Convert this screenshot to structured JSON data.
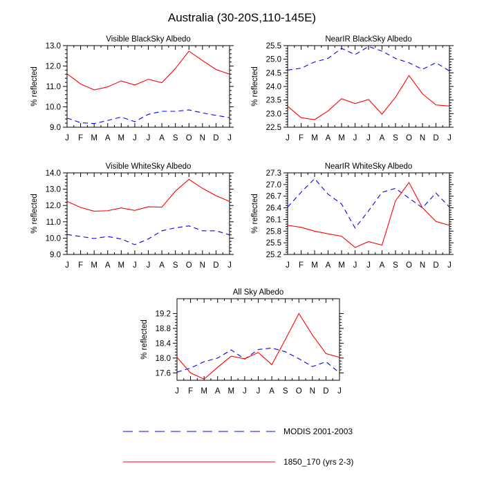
{
  "page_title": "Australia (30-20S,110-145E)",
  "colors": {
    "modis": "#0000ff",
    "model": "#ff0000",
    "axis": "#000000"
  },
  "legend": [
    {
      "name": "MODIS 2001-2003",
      "style": "dashed",
      "color": "#0000ff"
    },
    {
      "name": "1850_170 (yrs 2-3)",
      "style": "solid",
      "color": "#ff0000"
    }
  ],
  "chart_data": [
    {
      "type": "line",
      "title": "Visible BlackSky Albedo",
      "ylabel": "% reflected",
      "xlabel": "",
      "categories": [
        "J",
        "F",
        "M",
        "A",
        "M",
        "J",
        "J",
        "A",
        "S",
        "O",
        "N",
        "D",
        "J"
      ],
      "ylim": [
        9.0,
        13.0
      ],
      "yticks": [
        9.0,
        10.0,
        11.0,
        12.0,
        13.0
      ],
      "ytick_labels": [
        "9.0",
        "10.0",
        "11.0",
        "12.0",
        "13.0"
      ],
      "series": [
        {
          "name": "MODIS 2001-2003",
          "values": [
            9.45,
            9.22,
            9.18,
            9.33,
            9.5,
            9.27,
            9.63,
            9.78,
            9.78,
            9.85,
            9.7,
            9.58,
            9.47
          ]
        },
        {
          "name": "1850_170 (yrs 2-3)",
          "values": [
            11.62,
            11.12,
            10.83,
            10.98,
            11.27,
            11.07,
            11.35,
            11.18,
            11.88,
            12.73,
            12.27,
            11.83,
            11.6
          ]
        }
      ]
    },
    {
      "type": "line",
      "title": "NearIR BlackSky Albedo",
      "ylabel": "% reflected",
      "xlabel": "",
      "categories": [
        "J",
        "F",
        "M",
        "A",
        "M",
        "J",
        "J",
        "A",
        "S",
        "O",
        "N",
        "D",
        "J"
      ],
      "ylim": [
        22.5,
        25.5
      ],
      "yticks": [
        22.5,
        23.0,
        23.5,
        24.0,
        24.5,
        25.0,
        25.5
      ],
      "ytick_labels": [
        "22.5",
        "23.0",
        "23.5",
        "24.0",
        "24.5",
        "25.0",
        "25.5"
      ],
      "series": [
        {
          "name": "MODIS 2001-2003",
          "values": [
            24.6,
            24.67,
            24.9,
            25.03,
            25.4,
            25.17,
            25.47,
            25.3,
            25.03,
            24.87,
            24.63,
            24.87,
            24.57
          ]
        },
        {
          "name": "1850_170 (yrs 2-3)",
          "values": [
            23.27,
            22.85,
            22.78,
            23.1,
            23.55,
            23.37,
            23.52,
            22.98,
            23.6,
            24.4,
            23.73,
            23.32,
            23.28
          ]
        }
      ]
    },
    {
      "type": "line",
      "title": "Visible WhiteSky Albedo",
      "ylabel": "% reflected",
      "xlabel": "",
      "categories": [
        "J",
        "F",
        "M",
        "A",
        "M",
        "J",
        "J",
        "A",
        "S",
        "O",
        "N",
        "D",
        "J"
      ],
      "ylim": [
        9.0,
        14.0
      ],
      "yticks": [
        9.0,
        10.0,
        11.0,
        12.0,
        13.0,
        14.0
      ],
      "ytick_labels": [
        "9.0",
        "10.0",
        "11.0",
        "12.0",
        "13.0",
        "14.0"
      ],
      "series": [
        {
          "name": "MODIS 2001-2003",
          "values": [
            10.22,
            10.1,
            9.98,
            10.1,
            9.95,
            9.6,
            9.95,
            10.45,
            10.63,
            10.75,
            10.45,
            10.45,
            10.2
          ]
        },
        {
          "name": "1850_170 (yrs 2-3)",
          "values": [
            12.25,
            11.88,
            11.65,
            11.68,
            11.85,
            11.7,
            11.92,
            11.9,
            12.88,
            13.6,
            13.05,
            12.6,
            12.25
          ]
        }
      ]
    },
    {
      "type": "line",
      "title": "NearIR WhiteSky Albedo",
      "ylabel": "% reflected",
      "xlabel": "",
      "categories": [
        "J",
        "F",
        "M",
        "A",
        "M",
        "J",
        "J",
        "A",
        "S",
        "O",
        "N",
        "D",
        "J"
      ],
      "ylim": [
        25.2,
        27.3
      ],
      "yticks": [
        25.2,
        25.5,
        25.8,
        26.1,
        26.4,
        26.7,
        27.0,
        27.3
      ],
      "ytick_labels": [
        "25.2",
        "25.5",
        "25.8",
        "26.1",
        "26.4",
        "26.7",
        "27.0",
        "27.3"
      ],
      "series": [
        {
          "name": "MODIS 2001-2003",
          "values": [
            26.42,
            26.8,
            27.15,
            26.75,
            26.5,
            25.88,
            26.32,
            26.8,
            26.9,
            26.65,
            26.4,
            26.78,
            26.42
          ]
        },
        {
          "name": "1850_170 (yrs 2-3)",
          "values": [
            25.95,
            25.9,
            25.8,
            25.73,
            25.67,
            25.38,
            25.53,
            25.44,
            26.58,
            27.05,
            26.4,
            26.05,
            25.95
          ]
        }
      ]
    },
    {
      "type": "line",
      "title": "All Sky Albedo",
      "ylabel": "% reflected",
      "xlabel": "",
      "categories": [
        "J",
        "F",
        "M",
        "A",
        "M",
        "J",
        "J",
        "A",
        "S",
        "O",
        "N",
        "D",
        "J"
      ],
      "ylim": [
        17.4,
        19.6
      ],
      "yticks": [
        17.6,
        18.0,
        18.4,
        18.8,
        19.2
      ],
      "ytick_labels": [
        "17.6",
        "18.0",
        "18.4",
        "18.8",
        "19.2"
      ],
      "series": [
        {
          "name": "MODIS 2001-2003",
          "values": [
            17.62,
            17.73,
            17.9,
            18.0,
            18.22,
            17.97,
            18.23,
            18.27,
            18.17,
            17.98,
            17.77,
            17.9,
            17.6
          ]
        },
        {
          "name": "1850_170 (yrs 2-3)",
          "values": [
            18.02,
            17.6,
            17.43,
            17.75,
            18.05,
            17.98,
            18.15,
            17.82,
            18.5,
            19.2,
            18.62,
            18.12,
            18.02
          ]
        }
      ]
    }
  ]
}
